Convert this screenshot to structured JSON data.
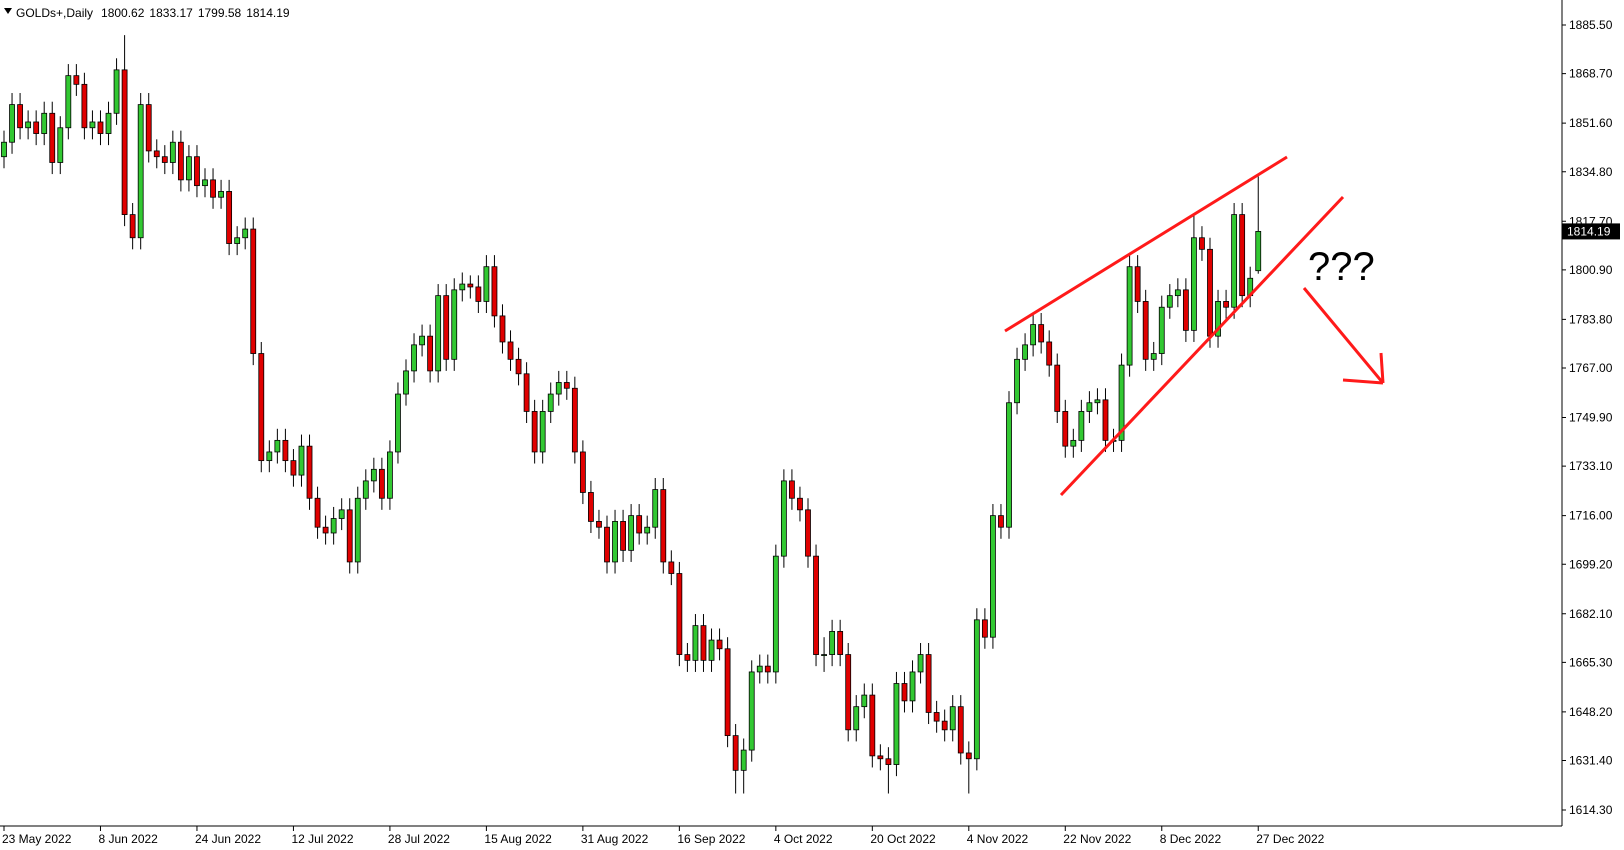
{
  "chart_data": {
    "type": "candlestick",
    "symbol": "GOLDs+,Daily",
    "annotation": "???",
    "up_color": "#32c832",
    "down_color": "#e00000",
    "ylim": [
      1614.3,
      1885.5
    ],
    "yticks": [
      {
        "value": 1614.3,
        "label": "1614.30"
      },
      {
        "value": 1631.4,
        "label": "1631.40"
      },
      {
        "value": 1648.2,
        "label": "1648.20"
      },
      {
        "value": 1665.3,
        "label": "1665.30"
      },
      {
        "value": 1682.1,
        "label": "1682.10"
      },
      {
        "value": 1699.2,
        "label": "1699.20"
      },
      {
        "value": 1716.0,
        "label": "1716.00"
      },
      {
        "value": 1733.1,
        "label": "1733.10"
      },
      {
        "value": 1749.9,
        "label": "1749.90"
      },
      {
        "value": 1767.0,
        "label": "1767.00"
      },
      {
        "value": 1783.8,
        "label": "1783.80"
      },
      {
        "value": 1800.9,
        "label": "1800.90"
      },
      {
        "value": 1817.7,
        "label": "1817.70"
      },
      {
        "value": 1834.8,
        "label": "1834.80"
      },
      {
        "value": 1851.6,
        "label": "1851.60"
      },
      {
        "value": 1868.7,
        "label": "1868.70"
      },
      {
        "value": 1885.5,
        "label": "1885.50"
      }
    ],
    "categories": [
      "23 May 2022",
      null,
      null,
      null,
      null,
      null,
      null,
      null,
      null,
      null,
      null,
      null,
      "8 Jun 2022",
      null,
      null,
      null,
      null,
      null,
      null,
      null,
      null,
      null,
      null,
      null,
      "24 Jun 2022",
      null,
      null,
      null,
      null,
      null,
      null,
      null,
      null,
      null,
      null,
      null,
      "12 Jul 2022",
      null,
      null,
      null,
      null,
      null,
      null,
      null,
      null,
      null,
      null,
      null,
      "28 Jul 2022",
      null,
      null,
      null,
      null,
      null,
      null,
      null,
      null,
      null,
      null,
      null,
      "15 Aug 2022",
      null,
      null,
      null,
      null,
      null,
      null,
      null,
      null,
      null,
      null,
      null,
      "31 Aug 2022",
      null,
      null,
      null,
      null,
      null,
      null,
      null,
      null,
      null,
      null,
      null,
      "16 Sep 2022",
      null,
      null,
      null,
      null,
      null,
      null,
      null,
      null,
      null,
      null,
      null,
      "4 Oct 2022",
      null,
      null,
      null,
      null,
      null,
      null,
      null,
      null,
      null,
      null,
      null,
      "20 Oct 2022",
      null,
      null,
      null,
      null,
      null,
      null,
      null,
      null,
      null,
      null,
      null,
      "4 Nov 2022",
      null,
      null,
      null,
      null,
      null,
      null,
      null,
      null,
      null,
      null,
      null,
      "22 Nov 2022",
      null,
      null,
      null,
      null,
      null,
      null,
      null,
      null,
      null,
      null,
      null,
      "8 Dec 2022",
      null,
      null,
      null,
      null,
      null,
      null,
      null,
      null,
      null,
      null,
      null,
      "27 Dec 2022"
    ],
    "open": [
      1840,
      1845,
      1858,
      1850,
      1852,
      1848,
      1855,
      1838,
      1850,
      1868,
      1865,
      1850,
      1852,
      1848,
      1855,
      1870,
      1820,
      1812,
      1858,
      1842,
      1840,
      1838,
      1845,
      1832,
      1840,
      1830,
      1832,
      1826,
      1828,
      1810,
      1812,
      1815,
      1772,
      1735,
      1738,
      1742,
      1735,
      1730,
      1740,
      1722,
      1712,
      1710,
      1715,
      1718,
      1700,
      1722,
      1728,
      1732,
      1722,
      1738,
      1758,
      1766,
      1775,
      1778,
      1766,
      1792,
      1770,
      1794,
      1796,
      1795,
      1790,
      1802,
      1785,
      1776,
      1770,
      1765,
      1752,
      1738,
      1752,
      1758,
      1762,
      1760,
      1738,
      1724,
      1714,
      1712,
      1700,
      1714,
      1704,
      1716,
      1710,
      1712,
      1725,
      1700,
      1696,
      1668,
      1666,
      1678,
      1666,
      1673,
      1670,
      1640,
      1628,
      1635,
      1662,
      1664,
      1662,
      1702,
      1728,
      1722,
      1718,
      1702,
      1668,
      1668,
      1676,
      1668,
      1642,
      1650,
      1654,
      1633,
      1632,
      1630,
      1658,
      1652,
      1662,
      1668,
      1648,
      1645,
      1642,
      1650,
      1634,
      1632,
      1680,
      1674,
      1716,
      1712,
      1755,
      1770,
      1775,
      1782,
      1776,
      1768,
      1752,
      1740,
      1742,
      1752,
      1755,
      1756,
      1742,
      1742,
      1768,
      1802,
      1790,
      1770,
      1772,
      1788,
      1792,
      1794,
      1780,
      1812,
      1808,
      1778,
      1790,
      1788,
      1820,
      1792,
      1800.62
    ],
    "high": [
      1849,
      1862,
      1862,
      1856,
      1856,
      1859,
      1859,
      1854,
      1872,
      1872,
      1869,
      1856,
      1856,
      1859,
      1874,
      1882,
      1824,
      1862,
      1862,
      1846,
      1844,
      1849,
      1849,
      1844,
      1844,
      1836,
      1836,
      1832,
      1832,
      1816,
      1819,
      1819,
      1776,
      1742,
      1746,
      1746,
      1739,
      1744,
      1744,
      1726,
      1716,
      1719,
      1722,
      1722,
      1726,
      1732,
      1736,
      1736,
      1742,
      1762,
      1770,
      1779,
      1782,
      1782,
      1796,
      1796,
      1798,
      1800,
      1799,
      1799,
      1806,
      1806,
      1789,
      1780,
      1774,
      1769,
      1756,
      1756,
      1762,
      1766,
      1766,
      1764,
      1742,
      1728,
      1718,
      1716,
      1718,
      1718,
      1720,
      1720,
      1716,
      1729,
      1729,
      1704,
      1700,
      1672,
      1682,
      1682,
      1677,
      1677,
      1674,
      1644,
      1639,
      1666,
      1668,
      1668,
      1706,
      1732,
      1732,
      1726,
      1722,
      1706,
      1674,
      1680,
      1680,
      1672,
      1654,
      1658,
      1658,
      1637,
      1636,
      1662,
      1662,
      1666,
      1672,
      1672,
      1652,
      1649,
      1654,
      1654,
      1638,
      1684,
      1684,
      1720,
      1720,
      1759,
      1774,
      1779,
      1786,
      1786,
      1780,
      1772,
      1756,
      1746,
      1756,
      1759,
      1760,
      1760,
      1746,
      1772,
      1806,
      1806,
      1794,
      1776,
      1792,
      1796,
      1798,
      1798,
      1820,
      1816,
      1812,
      1794,
      1794,
      1824,
      1824,
      1802,
      1833.17
    ],
    "low": [
      1836,
      1841,
      1846,
      1846,
      1844,
      1844,
      1834,
      1834,
      1846,
      1861,
      1846,
      1846,
      1844,
      1844,
      1851,
      1816,
      1808,
      1808,
      1838,
      1836,
      1834,
      1834,
      1828,
      1828,
      1826,
      1826,
      1822,
      1822,
      1806,
      1806,
      1808,
      1768,
      1731,
      1731,
      1734,
      1731,
      1726,
      1726,
      1718,
      1708,
      1706,
      1706,
      1711,
      1696,
      1696,
      1718,
      1724,
      1718,
      1718,
      1734,
      1754,
      1762,
      1771,
      1762,
      1762,
      1766,
      1766,
      1790,
      1791,
      1786,
      1786,
      1781,
      1772,
      1766,
      1761,
      1748,
      1734,
      1734,
      1748,
      1754,
      1756,
      1734,
      1720,
      1710,
      1708,
      1696,
      1696,
      1700,
      1700,
      1706,
      1706,
      1708,
      1696,
      1692,
      1664,
      1662,
      1662,
      1662,
      1662,
      1666,
      1636,
      1620,
      1620,
      1631,
      1658,
      1658,
      1658,
      1698,
      1718,
      1714,
      1698,
      1664,
      1662,
      1664,
      1664,
      1638,
      1638,
      1646,
      1629,
      1628,
      1620,
      1626,
      1648,
      1648,
      1658,
      1644,
      1641,
      1638,
      1638,
      1630,
      1620,
      1628,
      1670,
      1670,
      1708,
      1708,
      1751,
      1766,
      1771,
      1772,
      1764,
      1748,
      1736,
      1736,
      1738,
      1748,
      1751,
      1738,
      1738,
      1738,
      1764,
      1786,
      1766,
      1766,
      1768,
      1784,
      1788,
      1776,
      1776,
      1804,
      1774,
      1774,
      1784,
      1784,
      1788,
      1788,
      1799.58
    ],
    "close": [
      1845,
      1858,
      1850,
      1852,
      1848,
      1855,
      1838,
      1850,
      1868,
      1865,
      1850,
      1852,
      1848,
      1855,
      1870,
      1820,
      1812,
      1858,
      1842,
      1840,
      1838,
      1845,
      1832,
      1840,
      1830,
      1832,
      1826,
      1828,
      1810,
      1812,
      1815,
      1772,
      1735,
      1738,
      1742,
      1735,
      1730,
      1740,
      1722,
      1712,
      1710,
      1715,
      1718,
      1700,
      1722,
      1728,
      1732,
      1722,
      1738,
      1758,
      1766,
      1775,
      1778,
      1766,
      1792,
      1770,
      1794,
      1796,
      1795,
      1790,
      1802,
      1785,
      1776,
      1770,
      1765,
      1752,
      1738,
      1752,
      1758,
      1762,
      1760,
      1738,
      1724,
      1714,
      1712,
      1700,
      1714,
      1704,
      1716,
      1710,
      1712,
      1725,
      1700,
      1696,
      1668,
      1666,
      1678,
      1666,
      1673,
      1670,
      1640,
      1628,
      1635,
      1662,
      1664,
      1662,
      1702,
      1728,
      1722,
      1718,
      1702,
      1668,
      1668,
      1676,
      1668,
      1642,
      1650,
      1654,
      1633,
      1632,
      1630,
      1658,
      1652,
      1662,
      1668,
      1648,
      1645,
      1642,
      1650,
      1634,
      1632,
      1680,
      1674,
      1716,
      1712,
      1755,
      1770,
      1775,
      1782,
      1776,
      1768,
      1752,
      1740,
      1742,
      1752,
      1755,
      1756,
      1742,
      1742,
      1768,
      1802,
      1790,
      1770,
      1772,
      1788,
      1792,
      1794,
      1780,
      1812,
      1808,
      1778,
      1790,
      1788,
      1820,
      1792,
      1798,
      1814.19
    ]
  }
}
